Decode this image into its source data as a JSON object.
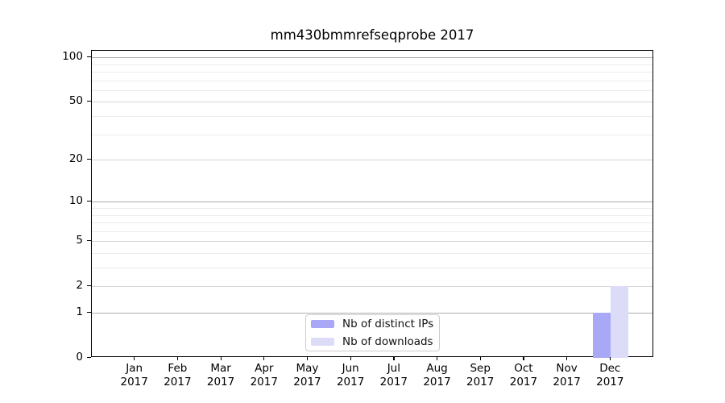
{
  "title": "mm430bmmrefseqprobe 2017",
  "legend": {
    "items": [
      {
        "label": "Nb of distinct IPs",
        "color": "#a8a8f7"
      },
      {
        "label": "Nb of downloads",
        "color": "#dcdcf8"
      }
    ]
  },
  "colors": {
    "distinct_ips_bar": "#a8a8f7",
    "downloads_bar": "#dcdcf8",
    "grid_decade": "#adadad",
    "grid_major": "#d6d6d6",
    "grid_minor": "#ececec",
    "axis": "#000000",
    "legend_border": "#cccccc"
  },
  "chart_data": {
    "type": "bar",
    "title": "mm430bmmrefseqprobe 2017",
    "categories": [
      "Jan 2017",
      "Feb 2017",
      "Mar 2017",
      "Apr 2017",
      "May 2017",
      "Jun 2017",
      "Jul 2017",
      "Aug 2017",
      "Sep 2017",
      "Oct 2017",
      "Nov 2017",
      "Dec 2017"
    ],
    "series": [
      {
        "name": "Nb of distinct IPs",
        "color": "#a8a8f7",
        "values": [
          0,
          0,
          0,
          0,
          0,
          0,
          0,
          0,
          0,
          0,
          0,
          1
        ]
      },
      {
        "name": "Nb of downloads",
        "color": "#dcdcf8",
        "values": [
          0,
          0,
          0,
          0,
          0,
          0,
          0,
          0,
          0,
          0,
          0,
          2
        ]
      }
    ],
    "xlabel": "",
    "ylabel": "",
    "y_axis": {
      "scale": "log1p",
      "max": 110.8,
      "major_ticks": [
        0,
        1,
        2,
        5,
        10,
        20,
        50,
        100
      ],
      "decade_ticks": [
        1,
        10,
        100
      ],
      "minor_ticks": [
        3,
        4,
        6,
        7,
        8,
        9,
        30,
        40,
        60,
        70,
        80,
        90
      ]
    },
    "grid": true,
    "legend_position": "bottom-center"
  }
}
